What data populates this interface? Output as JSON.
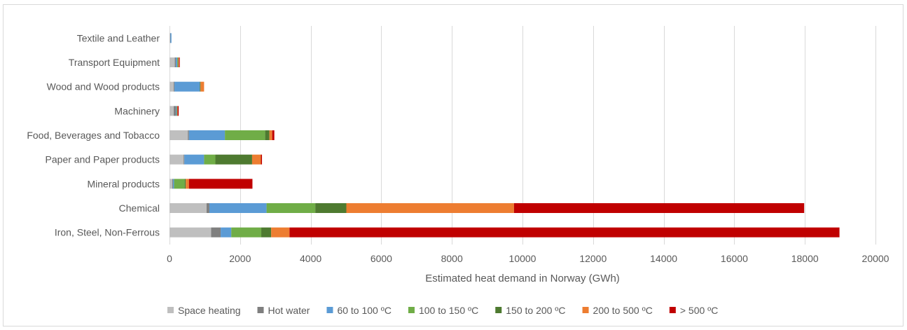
{
  "chart_data": {
    "type": "bar",
    "orientation": "horizontal",
    "stacked": true,
    "title": "",
    "xlabel": "Estimated heat demand in Norway (GWh)",
    "ylabel": "",
    "xlim": [
      0,
      20000
    ],
    "xticks": [
      0,
      2000,
      4000,
      6000,
      8000,
      10000,
      12000,
      14000,
      16000,
      18000,
      20000
    ],
    "grid": "vertical",
    "legend_position": "bottom",
    "categories": [
      "Textile and Leather",
      "Transport Equipment",
      "Wood and Wood products",
      "Machinery",
      "Food, Beverages and Tobacco",
      "Paper and Paper products",
      "Mineral products",
      "Chemical",
      "Iron, Steel, Non-Ferrous"
    ],
    "series": [
      {
        "name": "Space heating",
        "color": "#bfbfbf",
        "values": [
          20,
          150,
          120,
          120,
          520,
          400,
          80,
          1050,
          1180
        ]
      },
      {
        "name": "Hot water",
        "color": "#7f7f7f",
        "values": [
          5,
          30,
          20,
          60,
          30,
          20,
          20,
          80,
          270
        ]
      },
      {
        "name": "60 to 100 ºC",
        "color": "#5b9bd5",
        "values": [
          30,
          40,
          720,
          20,
          1020,
          560,
          30,
          1620,
          300
        ]
      },
      {
        "name": "100 to 150 ºC",
        "color": "#70ad47",
        "values": [
          0,
          20,
          0,
          10,
          1140,
          320,
          300,
          1380,
          850
        ]
      },
      {
        "name": "150 to 200 ºC",
        "color": "#4e7a30",
        "values": [
          0,
          10,
          20,
          10,
          120,
          1040,
          30,
          880,
          280
        ]
      },
      {
        "name": "200 to 500 ºC",
        "color": "#ed7d31",
        "values": [
          0,
          20,
          100,
          10,
          80,
          250,
          90,
          4750,
          520
        ]
      },
      {
        "name": "> 500 ºC",
        "color": "#c00000",
        "values": [
          0,
          20,
          0,
          30,
          60,
          30,
          1800,
          8220,
          15580
        ]
      }
    ]
  }
}
